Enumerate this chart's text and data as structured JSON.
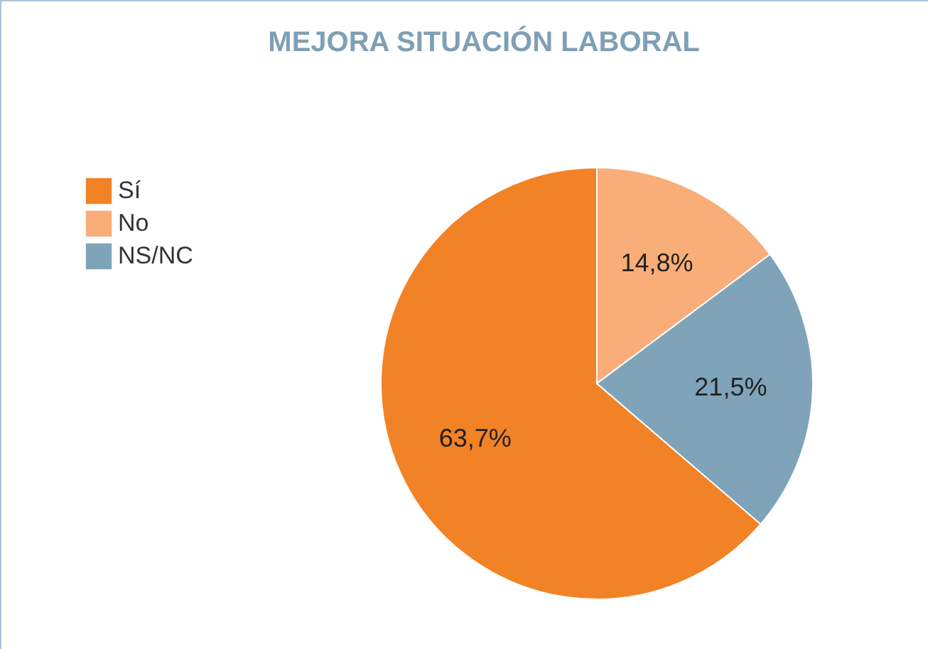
{
  "chart_data": {
    "type": "pie",
    "title": "MEJORA SITUACIÓN LABORAL",
    "categories": [
      "Sí",
      "No",
      "NS/NC"
    ],
    "values": [
      63.7,
      14.8,
      21.5
    ],
    "colors": [
      "#f28226",
      "#f9ad78",
      "#7fa3b9"
    ],
    "value_labels": [
      "63,7%",
      "14,8%",
      "21,5%"
    ],
    "legend": "top left"
  }
}
